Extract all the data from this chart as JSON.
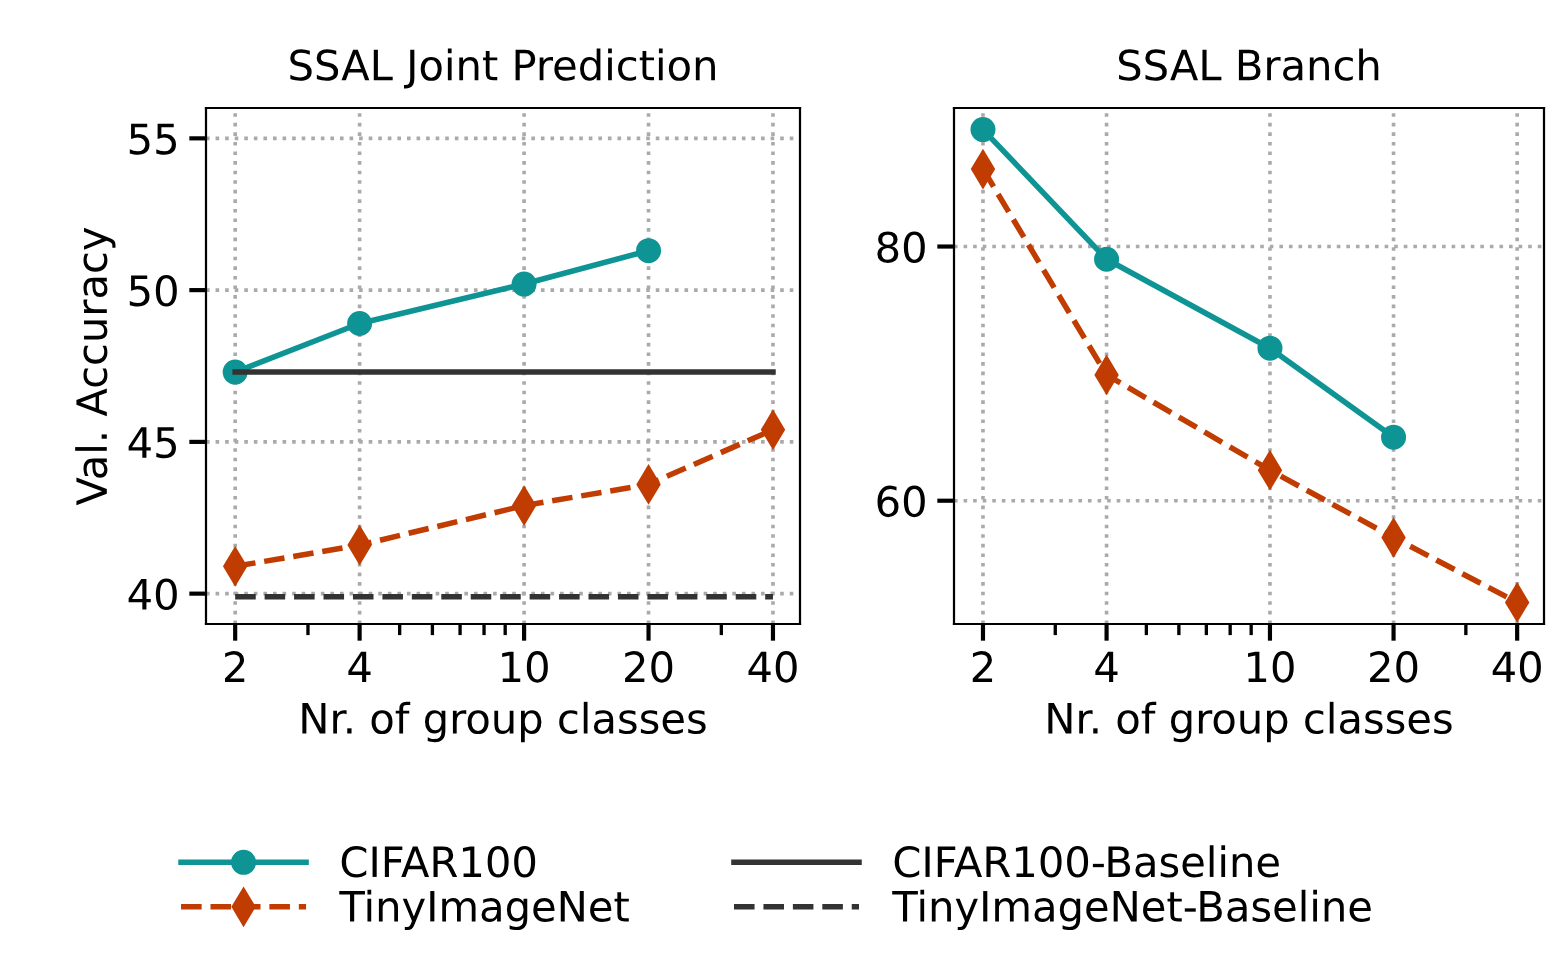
{
  "chart_data": [
    {
      "type": "line",
      "title": "SSAL Joint Prediction",
      "xlabel": "Nr. of group classes",
      "ylabel": "Val. Accuracy",
      "log": "x",
      "grid": true,
      "legend": "bottom",
      "x": [
        2,
        4,
        10,
        20,
        40
      ],
      "xlim": [
        1.7,
        46.5
      ],
      "xticks": [
        2,
        4,
        10,
        20,
        40
      ],
      "ylim": [
        39,
        56
      ],
      "yticks": [
        40,
        45,
        50,
        55
      ],
      "series": [
        {
          "name": "CIFAR100",
          "color": "#0e9494",
          "marker": "circle",
          "line_style": "solid",
          "values": [
            47.3,
            48.9,
            50.2,
            51.3,
            null
          ]
        },
        {
          "name": "TinyImageNet",
          "color": "#c03c00",
          "marker": "diamond",
          "line_style": "dashed",
          "values": [
            40.9,
            41.6,
            42.9,
            43.6,
            45.4
          ]
        },
        {
          "name": "CIFAR100-Baseline",
          "color": "#333333",
          "marker": "none",
          "line_style": "solid",
          "values": [
            47.3,
            47.3,
            47.3,
            47.3,
            47.3
          ]
        },
        {
          "name": "TinyImageNet-Baseline",
          "color": "#333333",
          "marker": "none",
          "line_style": "dashed",
          "values": [
            39.9,
            39.9,
            39.9,
            39.9,
            39.9
          ]
        }
      ]
    },
    {
      "type": "line",
      "title": "SSAL Branch",
      "xlabel": "Nr. of group classes",
      "log": "x",
      "grid": true,
      "x": [
        2,
        4,
        10,
        20,
        40
      ],
      "xlim": [
        1.7,
        46.5
      ],
      "xticks": [
        2,
        4,
        10,
        20,
        40
      ],
      "ylim": [
        50.3,
        90.9
      ],
      "yticks": [
        60,
        80
      ],
      "series": [
        {
          "color": "#0e9494",
          "marker": "circle",
          "line_style": "solid",
          "values": [
            89.2,
            79.0,
            72.0,
            65.0,
            null
          ]
        },
        {
          "color": "#c03c00",
          "marker": "diamond",
          "line_style": "dashed",
          "values": [
            86.1,
            69.9,
            62.4,
            57.1,
            52.0
          ]
        }
      ]
    }
  ]
}
